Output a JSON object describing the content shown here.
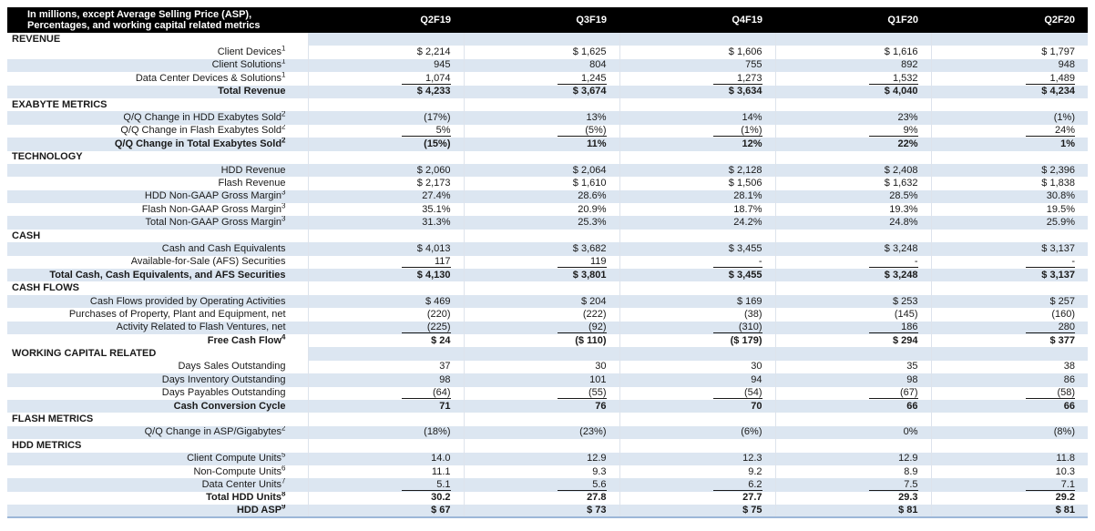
{
  "title": {
    "lines": [
      "In millions, except Average Selling Price (ASP),",
      "Percentages, and working capital related metrics"
    ]
  },
  "columns": [
    "Q2F19",
    "Q3F19",
    "Q4F19",
    "Q1F20",
    "Q2F20"
  ],
  "colors": {
    "header_bg": "#000000",
    "header_text": "#ffffff",
    "band": "#dce6f1",
    "bottom_rule": "#9cb7d8",
    "underline": "#1a1a1a"
  },
  "sections": [
    {
      "name": "REVENUE",
      "rows": [
        {
          "label": "Client Devices",
          "sup": "1",
          "values": [
            "$ 2,214",
            "$ 1,625",
            "$ 1,606",
            "$ 1,616",
            "$ 1,797"
          ]
        },
        {
          "label": "Client Solutions",
          "sup": "1",
          "values": [
            "945",
            "804",
            "755",
            "892",
            "948"
          ]
        },
        {
          "label": "Data Center Devices & Solutions",
          "sup": "1",
          "underline": true,
          "values": [
            "1,074",
            "1,245",
            "1,273",
            "1,532",
            "1,489"
          ]
        },
        {
          "label": "Total Revenue",
          "bold": true,
          "values": [
            "$ 4,233",
            "$ 3,674",
            "$ 3,634",
            "$ 4,040",
            "$ 4,234"
          ]
        }
      ]
    },
    {
      "name": "EXABYTE METRICS",
      "rows": [
        {
          "label": "Q/Q Change in HDD Exabytes Sold",
          "sup": "2",
          "values": [
            "(17%)",
            "13%",
            "14%",
            "23%",
            "(1%)"
          ]
        },
        {
          "label": "Q/Q Change in Flash Exabytes Sold",
          "sup": "2",
          "underline": true,
          "values": [
            "5%",
            "(5%)",
            "(1%)",
            "9%",
            "24%"
          ]
        },
        {
          "label": "Q/Q Change in Total Exabytes Sold",
          "sup": "2",
          "bold": true,
          "values": [
            "(15%)",
            "11%",
            "12%",
            "22%",
            "1%"
          ]
        }
      ]
    },
    {
      "name": "TECHNOLOGY",
      "rows": [
        {
          "label": "HDD Revenue",
          "values": [
            "$ 2,060",
            "$ 2,064",
            "$ 2,128",
            "$ 2,408",
            "$ 2,396"
          ]
        },
        {
          "label": "Flash Revenue",
          "values": [
            "$ 2,173",
            "$ 1,610",
            "$ 1,506",
            "$ 1,632",
            "$ 1,838"
          ]
        },
        {
          "label": "HDD Non-GAAP Gross Margin",
          "sup": "3",
          "values": [
            "27.4%",
            "28.6%",
            "28.1%",
            "28.5%",
            "30.8%"
          ]
        },
        {
          "label": "Flash Non-GAAP Gross Margin",
          "sup": "3",
          "values": [
            "35.1%",
            "20.9%",
            "18.7%",
            "19.3%",
            "19.5%"
          ]
        },
        {
          "label": "Total Non-GAAP Gross Margin",
          "sup": "3",
          "values": [
            "31.3%",
            "25.3%",
            "24.2%",
            "24.8%",
            "25.9%"
          ]
        }
      ]
    },
    {
      "name": "CASH",
      "rows": [
        {
          "label": "Cash and Cash Equivalents",
          "values": [
            "$ 4,013",
            "$ 3,682",
            "$ 3,455",
            "$ 3,248",
            "$ 3,137"
          ]
        },
        {
          "label": "Available-for-Sale (AFS) Securities",
          "underline": true,
          "values": [
            "117",
            "119",
            "-",
            "-",
            "-"
          ]
        },
        {
          "label": "Total Cash, Cash Equivalents, and AFS Securities",
          "bold": true,
          "values": [
            "$ 4,130",
            "$ 3,801",
            "$ 3,455",
            "$ 3,248",
            "$ 3,137"
          ]
        }
      ]
    },
    {
      "name": "CASH FLOWS",
      "rows": [
        {
          "label": "Cash Flows provided by Operating Activities",
          "values": [
            "$ 469",
            "$ 204",
            "$ 169",
            "$ 253",
            "$ 257"
          ]
        },
        {
          "label": "Purchases of Property, Plant and Equipment, net",
          "values": [
            "(220)",
            "(222)",
            "(38)",
            "(145)",
            "(160)"
          ]
        },
        {
          "label": "Activity Related to Flash Ventures, net",
          "underline": true,
          "values": [
            "(225)",
            "(92)",
            "(310)",
            "186",
            "280"
          ]
        },
        {
          "label": "Free Cash Flow",
          "sup": "4",
          "bold": true,
          "values": [
            "$ 24",
            "($ 110)",
            "($ 179)",
            "$ 294",
            "$ 377"
          ]
        }
      ]
    },
    {
      "name": "WORKING CAPITAL RELATED",
      "rows": [
        {
          "label": "Days Sales Outstanding",
          "values": [
            "37",
            "30",
            "30",
            "35",
            "38"
          ]
        },
        {
          "label": "Days Inventory Outstanding",
          "values": [
            "98",
            "101",
            "94",
            "98",
            "86"
          ]
        },
        {
          "label": "Days Payables Outstanding",
          "underline": true,
          "values": [
            "(64)",
            "(55)",
            "(54)",
            "(67)",
            "(58)"
          ]
        },
        {
          "label": "Cash Conversion Cycle",
          "bold": true,
          "values": [
            "71",
            "76",
            "70",
            "66",
            "66"
          ]
        }
      ]
    },
    {
      "name": "FLASH METRICS",
      "rows": [
        {
          "label": "Q/Q Change in ASP/Gigabytes",
          "sup": "2",
          "values": [
            "(18%)",
            "(23%)",
            "(6%)",
            "0%",
            "(8%)"
          ]
        }
      ]
    },
    {
      "name": "HDD METRICS",
      "rows": [
        {
          "label": "Client Compute Units",
          "sup": "5",
          "values": [
            "14.0",
            "12.9",
            "12.3",
            "12.9",
            "11.8"
          ]
        },
        {
          "label": "Non-Compute Units",
          "sup": "6",
          "values": [
            "11.1",
            "9.3",
            "9.2",
            "8.9",
            "10.3"
          ]
        },
        {
          "label": "Data Center Units",
          "sup": "7",
          "underline": true,
          "values": [
            "5.1",
            "5.6",
            "6.2",
            "7.5",
            "7.1"
          ]
        },
        {
          "label": "Total HDD Units",
          "sup": "8",
          "bold": true,
          "values": [
            "30.2",
            "27.8",
            "27.7",
            "29.3",
            "29.2"
          ]
        },
        {
          "label": "HDD ASP",
          "sup": "9",
          "bold": true,
          "values": [
            "$ 67",
            "$ 73",
            "$ 75",
            "$ 81",
            "$ 81"
          ]
        }
      ]
    }
  ]
}
